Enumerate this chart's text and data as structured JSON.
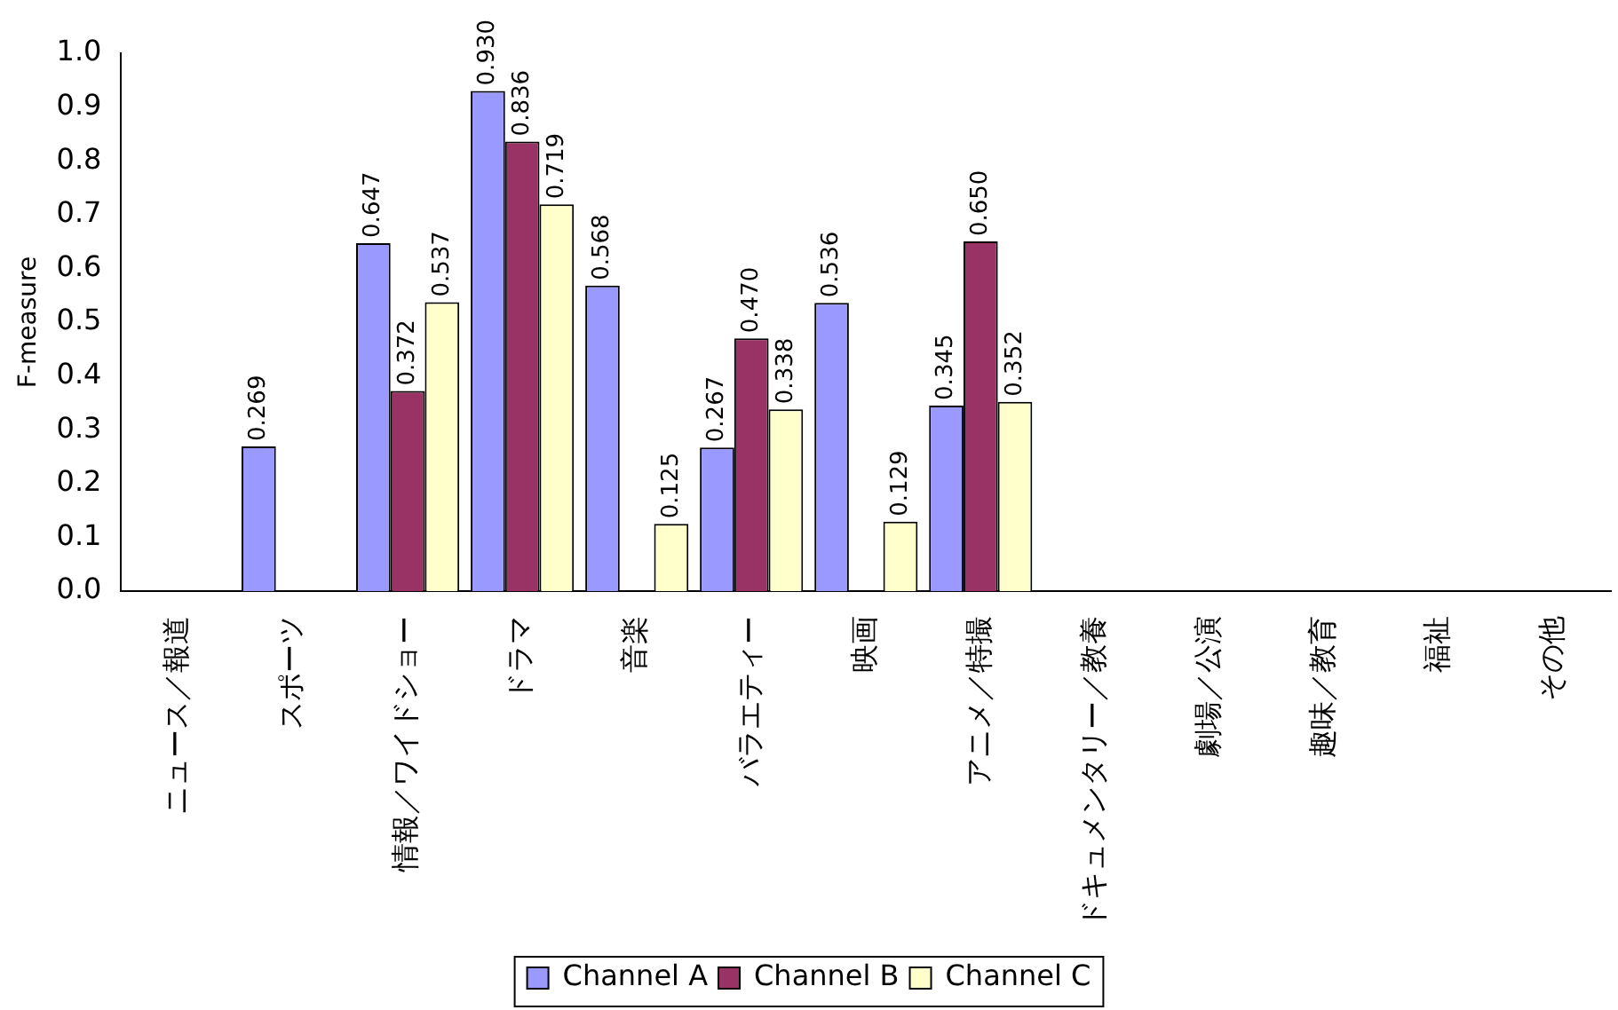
{
  "chart_data": {
    "type": "bar",
    "ylabel": "F-measure",
    "categories": [
      "ニュース／報道",
      "スポーツ",
      "情報／ワイドショー",
      "ドラマ",
      "音楽",
      "バラエティー",
      "映画",
      "アニメ／特撮",
      "ドキュメンタリー／教養",
      "劇場／公演",
      "趣味／教育",
      "福祉",
      "その他"
    ],
    "series": [
      {
        "name": "Channel A",
        "color": "#9999ff",
        "values": [
          null,
          0.269,
          0.647,
          0.93,
          0.568,
          0.267,
          0.536,
          0.345,
          null,
          null,
          null,
          null,
          null
        ],
        "value_labels": [
          null,
          "0.269",
          "0.647",
          "0.930",
          "0.568",
          "0.267",
          "0.536",
          "0.345",
          null,
          null,
          null,
          null,
          null
        ]
      },
      {
        "name": "Channel B",
        "color": "#993366",
        "values": [
          null,
          null,
          0.372,
          0.836,
          null,
          0.47,
          null,
          0.65,
          null,
          null,
          null,
          null,
          null
        ],
        "value_labels": [
          null,
          null,
          "0.372",
          "0.836",
          null,
          "0.470",
          null,
          "0.650",
          null,
          null,
          null,
          null,
          null
        ]
      },
      {
        "name": "Channel C",
        "color": "#ffffcc",
        "values": [
          null,
          null,
          0.537,
          0.719,
          0.125,
          0.338,
          0.129,
          0.352,
          null,
          null,
          null,
          null,
          null
        ],
        "value_labels": [
          null,
          null,
          "0.537",
          "0.719",
          "0.125",
          "0.338",
          "0.129",
          "0.352",
          null,
          null,
          null,
          null,
          null
        ]
      }
    ],
    "ylim": [
      0,
      1
    ],
    "yticks": [
      {
        "value": 0,
        "label": "0.0"
      },
      {
        "value": 0.1,
        "label": "0.1"
      },
      {
        "value": 0.2,
        "label": "0.2"
      },
      {
        "value": 0.3,
        "label": "0.3"
      },
      {
        "value": 0.4,
        "label": "0.4"
      },
      {
        "value": 0.5,
        "label": "0.5"
      },
      {
        "value": 0.6,
        "label": "0.6"
      },
      {
        "value": 0.7,
        "label": "0.7"
      },
      {
        "value": 0.8,
        "label": "0.8"
      },
      {
        "value": 0.9,
        "label": "0.9"
      },
      {
        "value": 1,
        "label": "1.0"
      }
    ],
    "grid": false,
    "legend": "bottom"
  }
}
